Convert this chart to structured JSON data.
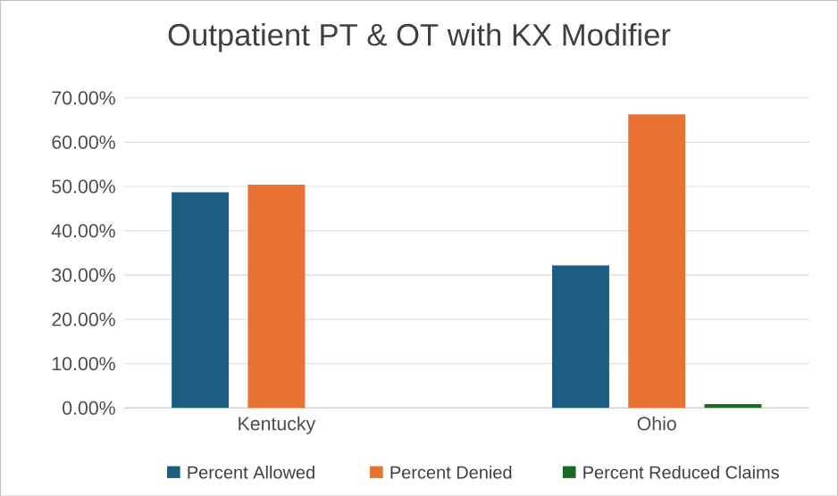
{
  "chart_data": {
    "type": "bar",
    "title": "Outpatient PT & OT with KX Modifier",
    "categories": [
      "Kentucky",
      "Ohio"
    ],
    "series": [
      {
        "name": "Percent Allowed",
        "color": "#1b5e82",
        "values": [
          48.7,
          32.2
        ]
      },
      {
        "name": "Percent Denied",
        "color": "#e97132",
        "values": [
          50.4,
          66.3
        ]
      },
      {
        "name": "Percent Reduced Claims",
        "color": "#196b24",
        "values": [
          0,
          0.9
        ]
      }
    ],
    "ylim": [
      0,
      70
    ],
    "yticks": [
      {
        "value": 0,
        "label": "0.00%"
      },
      {
        "value": 10,
        "label": "10.00%"
      },
      {
        "value": 20,
        "label": "20.00%"
      },
      {
        "value": 30,
        "label": "30.00%"
      },
      {
        "value": 40,
        "label": "40.00%"
      },
      {
        "value": 50,
        "label": "50.00%"
      },
      {
        "value": 60,
        "label": "60.00%"
      },
      {
        "value": 70,
        "label": "70.00%"
      }
    ],
    "grid": "y",
    "legend": "bottom"
  }
}
